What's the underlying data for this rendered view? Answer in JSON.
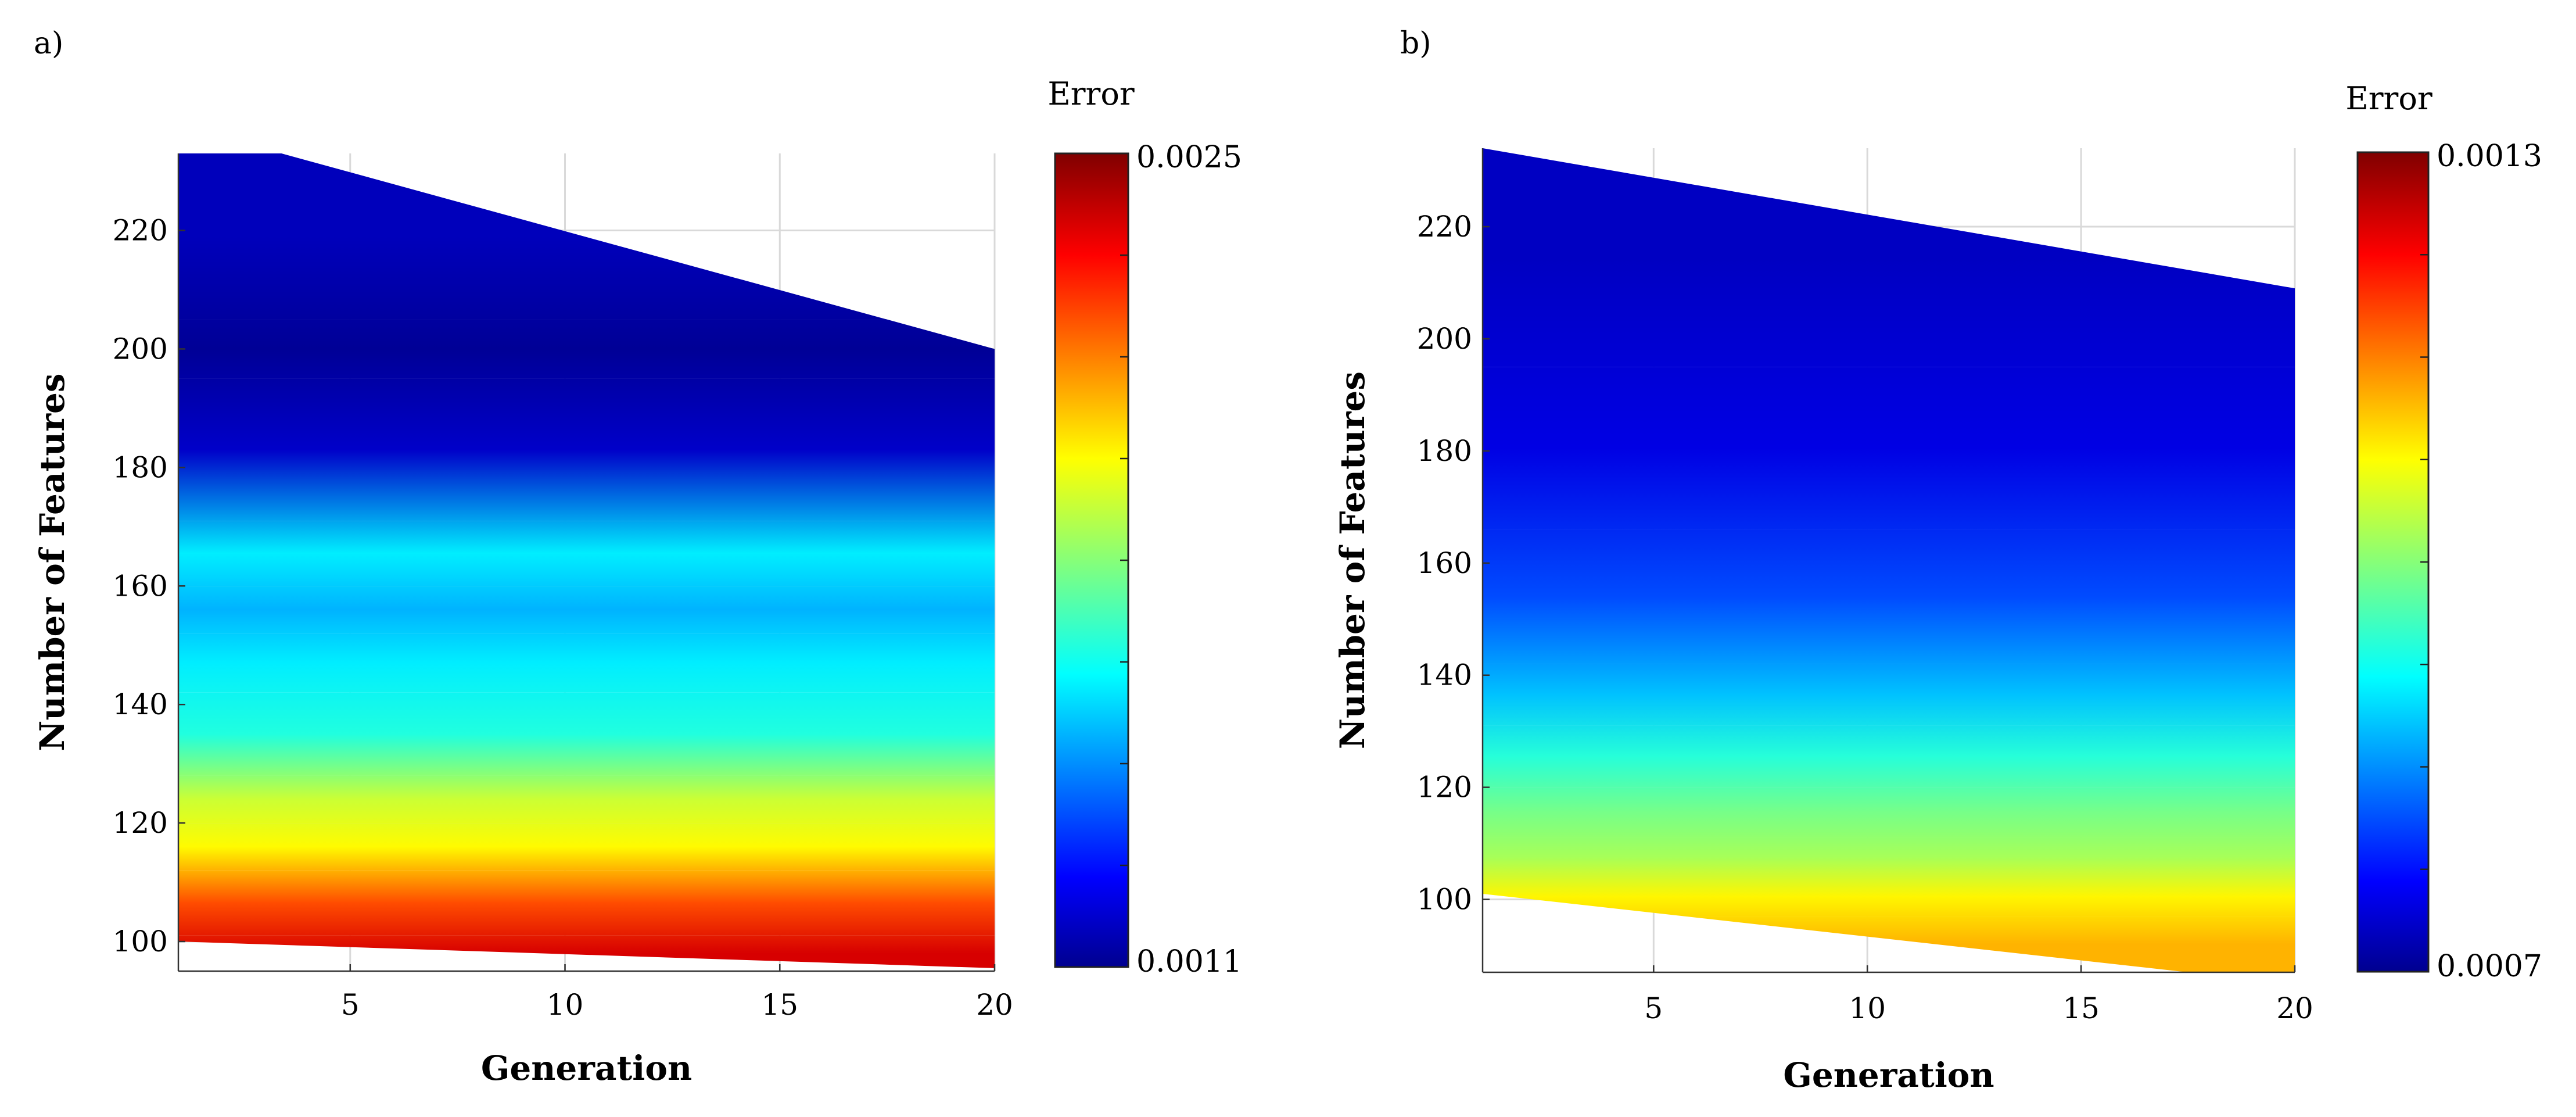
{
  "chart_data": [
    {
      "type": "heatmap",
      "panel_label": "a)",
      "title": "",
      "xlabel": "Generation",
      "ylabel": "Number of Features",
      "xlim": [
        1,
        20
      ],
      "ylim": [
        95,
        233
      ],
      "xticks": [
        5,
        10,
        15,
        20
      ],
      "yticks": [
        100,
        120,
        140,
        160,
        180,
        200,
        220
      ],
      "grid": true,
      "colorbar": {
        "title": "Error",
        "min": 0.0011,
        "max": 0.0025,
        "min_label": "0.0011",
        "max_label": "0.0025",
        "colormap": "jet"
      },
      "boundary": {
        "upper": [
          [
            1,
            233
          ],
          [
            3.4,
            233
          ],
          [
            20,
            200
          ]
        ],
        "lower": [
          [
            1,
            100
          ],
          [
            20,
            95.5
          ]
        ]
      },
      "bands": [
        {
          "y_range": [
            95,
            101
          ],
          "error": 0.00238
        },
        {
          "y_range": [
            101,
            112
          ],
          "error": 0.00222
        },
        {
          "y_range": [
            112,
            120
          ],
          "error": 0.00198
        },
        {
          "y_range": [
            120,
            128
          ],
          "error": 0.0019
        },
        {
          "y_range": [
            128,
            142
          ],
          "error": 0.00165
        },
        {
          "y_range": [
            142,
            152
          ],
          "error": 0.00158
        },
        {
          "y_range": [
            152,
            160
          ],
          "error": 0.0015
        },
        {
          "y_range": [
            160,
            171
          ],
          "error": 0.00158
        },
        {
          "y_range": [
            171,
            195
          ],
          "error": 0.00118
        },
        {
          "y_range": [
            195,
            205
          ],
          "error": 0.00111
        },
        {
          "y_range": [
            205,
            233
          ],
          "error": 0.00116
        }
      ]
    },
    {
      "type": "heatmap",
      "panel_label": "b)",
      "title": "",
      "xlabel": "Generation",
      "ylabel": "Number of Features",
      "xlim": [
        1,
        20
      ],
      "ylim": [
        87,
        234
      ],
      "xticks": [
        5,
        10,
        15,
        20
      ],
      "yticks": [
        100,
        120,
        140,
        160,
        180,
        200,
        220
      ],
      "grid": true,
      "colorbar": {
        "title": "Error",
        "min": 0.0007,
        "max": 0.0013,
        "min_label": "0.0007",
        "max_label": "0.0013",
        "colormap": "jet"
      },
      "boundary": {
        "upper": [
          [
            1,
            234
          ],
          [
            20,
            209
          ]
        ],
        "lower": [
          [
            1,
            101
          ],
          [
            17.5,
            87
          ],
          [
            20,
            87
          ]
        ]
      },
      "bands": [
        {
          "y_range": [
            87,
            97
          ],
          "error": 0.00112
        },
        {
          "y_range": [
            97,
            104
          ],
          "error": 0.00108
        },
        {
          "y_range": [
            104,
            111
          ],
          "error": 0.00102
        },
        {
          "y_range": [
            111,
            120
          ],
          "error": 0.00099
        },
        {
          "y_range": [
            120,
            131
          ],
          "error": 0.00094
        },
        {
          "y_range": [
            131,
            142
          ],
          "error": 0.00088
        },
        {
          "y_range": [
            142,
            166
          ],
          "error": 0.00081
        },
        {
          "y_range": [
            166,
            195
          ],
          "error": 0.00075
        },
        {
          "y_range": [
            195,
            234
          ],
          "error": 0.00073
        }
      ]
    }
  ]
}
